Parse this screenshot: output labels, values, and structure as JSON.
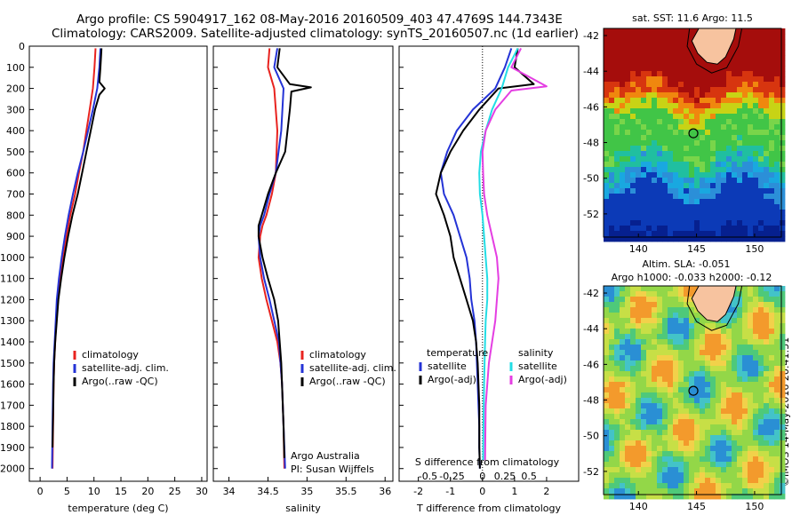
{
  "header": {
    "title_line1": "Argo profile: CS 5904917_162 08-May-2016 20160509_403 47.4769S 144.7343E",
    "title_line2": "Climatology: CARS2009. Satellite-adjusted climatology: synTS_20160507.nc (1d earlier)"
  },
  "colors": {
    "climatology": "#e8231f",
    "satellite": "#2433d6",
    "argo": "#000000",
    "salinity_satellite": "#22dde5",
    "salinity_argo": "#e43ee2",
    "land": "#f7c39f"
  },
  "chart_data": [
    {
      "type": "line",
      "name": "temperature",
      "xlabel": "temperature (deg C)",
      "ylabel": "",
      "xlim": [
        -2,
        31
      ],
      "ylim": [
        2060,
        0
      ],
      "xticks": [
        0,
        5,
        10,
        15,
        20,
        25,
        30
      ],
      "yticks": [
        0,
        100,
        200,
        300,
        400,
        500,
        600,
        700,
        800,
        900,
        1000,
        1100,
        1200,
        1300,
        1400,
        1500,
        1600,
        1700,
        1800,
        1900,
        2000
      ],
      "legend": [
        "climatology",
        "satellite-adj. clim.",
        "Argo(..raw -QC)"
      ],
      "series": [
        {
          "name": "climatology",
          "x": [
            10.3,
            10.1,
            9.8,
            9.2,
            8.6,
            8.0,
            7.2,
            6.5,
            5.6,
            4.9,
            4.3,
            3.7,
            3.3,
            3.0,
            2.8,
            2.6,
            2.5,
            2.4,
            2.3
          ],
          "y": [
            10,
            100,
            200,
            300,
            400,
            500,
            600,
            700,
            800,
            900,
            1000,
            1100,
            1200,
            1300,
            1400,
            1500,
            1600,
            1800,
            2000
          ]
        },
        {
          "name": "satellite-adj. clim.",
          "x": [
            11.2,
            11.0,
            10.6,
            9.8,
            8.9,
            8.0,
            7.0,
            6.1,
            5.3,
            4.6,
            4.0,
            3.5,
            3.1,
            2.9,
            2.7,
            2.5,
            2.4,
            2.3,
            2.2
          ],
          "y": [
            10,
            100,
            200,
            300,
            400,
            500,
            600,
            700,
            800,
            900,
            1000,
            1100,
            1200,
            1300,
            1400,
            1500,
            1600,
            1800,
            2000
          ]
        },
        {
          "name": "Argo(..raw -QC)",
          "x": [
            11.4,
            11.2,
            11.0,
            12.0,
            11.0,
            10.2,
            9.4,
            8.6,
            7.8,
            7.0,
            6.0,
            5.2,
            4.5,
            3.9,
            3.4,
            3.1,
            2.8,
            2.6,
            2.5,
            2.3
          ],
          "y": [
            10,
            100,
            170,
            200,
            230,
            300,
            400,
            500,
            600,
            700,
            800,
            900,
            1000,
            1100,
            1200,
            1300,
            1400,
            1500,
            1600,
            1900
          ]
        }
      ]
    },
    {
      "type": "line",
      "name": "salinity",
      "xlabel": "salinity",
      "xlim": [
        33.8,
        36.1
      ],
      "ylim": [
        2060,
        0
      ],
      "xticks": [
        34,
        34.5,
        35,
        35.5,
        36
      ],
      "legend": [
        "climatology",
        "satellite-adj. clim.",
        "Argo(..raw -QC)"
      ],
      "annotation": [
        "Argo Australia",
        "PI: Susan Wijffels"
      ],
      "series": [
        {
          "name": "climatology",
          "x": [
            34.52,
            34.5,
            34.58,
            34.62,
            34.6,
            34.55,
            34.48,
            34.43,
            34.4,
            34.38,
            34.42,
            34.48,
            34.55,
            34.62,
            34.66,
            34.68,
            34.7,
            34.71
          ],
          "y": [
            10,
            100,
            200,
            400,
            600,
            700,
            800,
            850,
            900,
            1000,
            1100,
            1200,
            1300,
            1400,
            1500,
            1600,
            1800,
            2000
          ]
        },
        {
          "name": "satellite-adj. clim.",
          "x": [
            34.62,
            34.58,
            34.7,
            34.67,
            34.6,
            34.52,
            34.45,
            34.4,
            34.38,
            34.4,
            34.45,
            34.52,
            34.58,
            34.64,
            34.68,
            34.7,
            34.72
          ],
          "y": [
            10,
            100,
            200,
            400,
            600,
            700,
            800,
            850,
            900,
            1000,
            1100,
            1200,
            1300,
            1400,
            1600,
            1800,
            2000
          ]
        },
        {
          "name": "Argo(..raw -QC)",
          "x": [
            34.65,
            34.62,
            34.78,
            35.05,
            34.8,
            34.78,
            34.72,
            34.6,
            34.5,
            34.42,
            34.38,
            34.38,
            34.43,
            34.5,
            34.58,
            34.63,
            34.67,
            34.7,
            34.71
          ],
          "y": [
            10,
            100,
            180,
            195,
            215,
            300,
            500,
            600,
            700,
            800,
            850,
            900,
            1000,
            1100,
            1200,
            1300,
            1500,
            1800,
            1950
          ]
        }
      ]
    },
    {
      "type": "line",
      "name": "difference",
      "xlabel": "T difference from climatology",
      "x2label": "S difference from climatology",
      "xlim": [
        -2.6,
        3.0
      ],
      "ylim": [
        2060,
        0
      ],
      "xticks": [
        -2,
        -1,
        0,
        1,
        2
      ],
      "x2ticks": [
        "-0.5",
        "-0.25",
        "0",
        "0.25",
        "0.5"
      ],
      "x2tick_positions": [
        -1.7,
        -0.95,
        0,
        0.7,
        1.45
      ],
      "legend_left_title": "temperature",
      "legend_right_title": "salinity",
      "legend": [
        "satellite",
        "Argo(-adj)",
        "satellite",
        "Argo(-adj)"
      ],
      "series": [
        {
          "name": "temperature satellite",
          "x": [
            0.9,
            0.7,
            0.4,
            -0.3,
            -0.8,
            -1.1,
            -1.3,
            -1.2,
            -0.9,
            -0.7,
            -0.5,
            -0.4,
            -0.35,
            -0.25,
            -0.2,
            -0.15,
            -0.1,
            -0.1,
            -0.08
          ],
          "y": [
            10,
            100,
            200,
            300,
            400,
            500,
            600,
            700,
            800,
            900,
            1000,
            1100,
            1200,
            1300,
            1400,
            1600,
            1800,
            1900,
            2000
          ]
        },
        {
          "name": "temperature Argo(-adj)",
          "x": [
            1.1,
            1.0,
            1.6,
            0.5,
            -0.1,
            -0.6,
            -1.0,
            -1.3,
            -1.45,
            -1.2,
            -1.0,
            -0.9,
            -0.7,
            -0.5,
            -0.3,
            -0.2,
            -0.15,
            -0.1,
            -0.1,
            -0.08
          ],
          "y": [
            10,
            100,
            180,
            200,
            300,
            400,
            500,
            600,
            700,
            800,
            900,
            1000,
            1100,
            1200,
            1300,
            1400,
            1500,
            1700,
            1900,
            2000
          ]
        },
        {
          "name": "salinity satellite",
          "x": [
            1.1,
            0.8,
            0.6,
            0.3,
            0.1,
            -0.05,
            -0.1,
            -0.08,
            0.0,
            0.05,
            0.1,
            0.15,
            0.15,
            0.1,
            0.08,
            0.05,
            0.03,
            0.02
          ],
          "y": [
            10,
            100,
            200,
            300,
            400,
            500,
            600,
            700,
            800,
            900,
            1000,
            1100,
            1200,
            1300,
            1400,
            1600,
            1800,
            1960
          ]
        },
        {
          "name": "salinity Argo(-adj)",
          "x": [
            1.2,
            0.9,
            2.0,
            0.9,
            0.4,
            0.1,
            0.0,
            0.02,
            0.05,
            0.15,
            0.3,
            0.45,
            0.5,
            0.45,
            0.4,
            0.3,
            0.2,
            0.1,
            0.08
          ],
          "y": [
            10,
            100,
            190,
            210,
            300,
            400,
            500,
            600,
            700,
            800,
            900,
            1000,
            1100,
            1200,
            1300,
            1400,
            1500,
            1700,
            1960
          ]
        }
      ]
    },
    {
      "type": "heatmap",
      "name": "sst map",
      "title": "sat. SST: 11.6  Argo: 11.5",
      "xlim": [
        137,
        152.3
      ],
      "ylim": [
        -53.3,
        -41.6
      ],
      "xticks": [
        140,
        145,
        150
      ],
      "yticks": [
        -42,
        -44,
        -46,
        -48,
        -50,
        -52
      ],
      "marker": {
        "lon": 144.73,
        "lat": -47.48
      }
    },
    {
      "type": "heatmap",
      "name": "sla map",
      "title_line1": "Altim. SLA: -0.051",
      "title_line2": "Argo h1000: -0.033 h2000: -0.12",
      "xlim": [
        137,
        152.3
      ],
      "ylim": [
        -53.3,
        -41.6
      ],
      "xticks": [
        140,
        145,
        150
      ],
      "yticks": [
        -42,
        -44,
        -46,
        -48,
        -50,
        -52
      ],
      "marker": {
        "lon": 144.73,
        "lat": -47.48
      }
    }
  ],
  "footer": {
    "stamp": "©IMOS 14-May-2016 20:41:51"
  }
}
